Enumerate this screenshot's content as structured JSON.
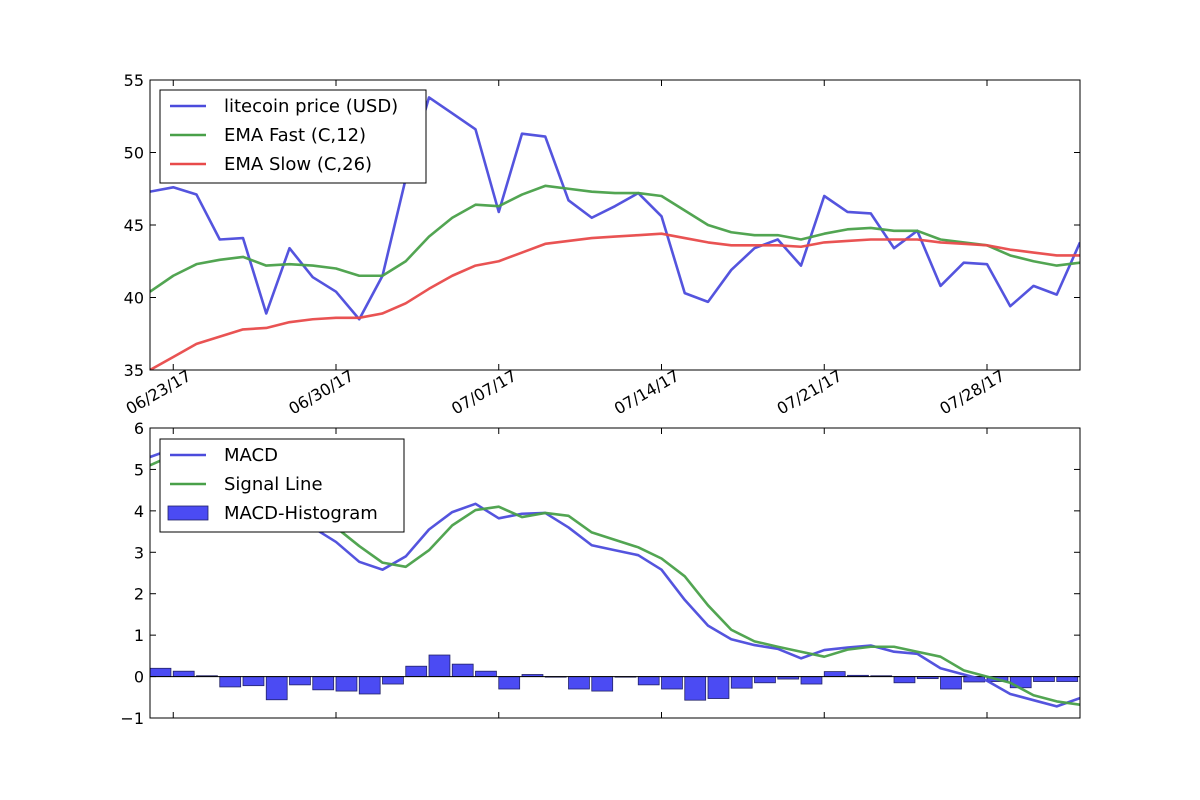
{
  "chart_data": [
    {
      "type": "line",
      "dates": [
        "2017-06-22",
        "2017-06-23",
        "2017-06-24",
        "2017-06-25",
        "2017-06-26",
        "2017-06-27",
        "2017-06-28",
        "2017-06-29",
        "2017-06-30",
        "2017-07-01",
        "2017-07-02",
        "2017-07-03",
        "2017-07-04",
        "2017-07-05",
        "2017-07-06",
        "2017-07-07",
        "2017-07-08",
        "2017-07-09",
        "2017-07-10",
        "2017-07-11",
        "2017-07-12",
        "2017-07-13",
        "2017-07-14",
        "2017-07-15",
        "2017-07-16",
        "2017-07-17",
        "2017-07-18",
        "2017-07-19",
        "2017-07-20",
        "2017-07-21",
        "2017-07-22",
        "2017-07-23",
        "2017-07-24",
        "2017-07-25",
        "2017-07-26",
        "2017-07-27",
        "2017-07-28",
        "2017-07-29",
        "2017-07-30",
        "2017-07-31",
        "2017-08-01"
      ],
      "series": [
        {
          "name": "litecoin price (USD)",
          "color": "#4b4bdc",
          "values": [
            47.3,
            47.6,
            47.1,
            44.0,
            44.1,
            38.9,
            43.4,
            41.4,
            40.4,
            38.5,
            41.5,
            48.2,
            53.8,
            52.7,
            51.6,
            45.9,
            51.3,
            51.1,
            46.7,
            45.5,
            46.3,
            47.2,
            45.6,
            40.3,
            39.7,
            41.9,
            43.4,
            44.0,
            42.2,
            47.0,
            45.9,
            45.8,
            43.4,
            44.6,
            40.8,
            42.4,
            42.3,
            39.4,
            40.8,
            40.2,
            43.8
          ]
        },
        {
          "name": "EMA Fast (C,12)",
          "color": "#49a049",
          "values": [
            40.4,
            41.5,
            42.3,
            42.6,
            42.8,
            42.2,
            42.3,
            42.2,
            42.0,
            41.5,
            41.5,
            42.5,
            44.2,
            45.5,
            46.4,
            46.3,
            47.1,
            47.7,
            47.5,
            47.3,
            47.2,
            47.2,
            47.0,
            46.0,
            45.0,
            44.5,
            44.3,
            44.3,
            44.0,
            44.4,
            44.7,
            44.8,
            44.6,
            44.6,
            44.0,
            43.8,
            43.6,
            42.9,
            42.5,
            42.2,
            42.4
          ]
        },
        {
          "name": "EMA Slow (C,26)",
          "color": "#e84a4a",
          "values": [
            35.0,
            35.9,
            36.8,
            37.3,
            37.8,
            37.9,
            38.3,
            38.5,
            38.6,
            38.6,
            38.9,
            39.6,
            40.6,
            41.5,
            42.2,
            42.5,
            43.1,
            43.7,
            43.9,
            44.1,
            44.2,
            44.3,
            44.4,
            44.1,
            43.8,
            43.6,
            43.6,
            43.6,
            43.5,
            43.8,
            43.9,
            44.0,
            44.0,
            44.0,
            43.8,
            43.7,
            43.6,
            43.3,
            43.1,
            42.9,
            42.9
          ]
        }
      ],
      "xticks": [
        {
          "date": "2017-06-23",
          "label": "06/23/17"
        },
        {
          "date": "2017-06-30",
          "label": "06/30/17"
        },
        {
          "date": "2017-07-07",
          "label": "07/07/17"
        },
        {
          "date": "2017-07-14",
          "label": "07/14/17"
        },
        {
          "date": "2017-07-21",
          "label": "07/21/17"
        },
        {
          "date": "2017-07-28",
          "label": "07/28/17"
        }
      ],
      "xlim": [
        "2017-06-22",
        "2017-08-01"
      ],
      "yticks": [
        35,
        40,
        45,
        50,
        55
      ],
      "ylim": [
        35,
        55
      ],
      "grid": false,
      "legend": "top-left",
      "legend_entries": [
        "litecoin price (USD)",
        "EMA Fast (C,12)",
        "EMA Slow (C,26)"
      ]
    },
    {
      "type": "line",
      "dates": [
        "2017-06-22",
        "2017-06-23",
        "2017-06-24",
        "2017-06-25",
        "2017-06-26",
        "2017-06-27",
        "2017-06-28",
        "2017-06-29",
        "2017-06-30",
        "2017-07-01",
        "2017-07-02",
        "2017-07-03",
        "2017-07-04",
        "2017-07-05",
        "2017-07-06",
        "2017-07-07",
        "2017-07-08",
        "2017-07-09",
        "2017-07-10",
        "2017-07-11",
        "2017-07-12",
        "2017-07-13",
        "2017-07-14",
        "2017-07-15",
        "2017-07-16",
        "2017-07-17",
        "2017-07-18",
        "2017-07-19",
        "2017-07-20",
        "2017-07-21",
        "2017-07-22",
        "2017-07-23",
        "2017-07-24",
        "2017-07-25",
        "2017-07-26",
        "2017-07-27",
        "2017-07-28",
        "2017-07-29",
        "2017-07-30",
        "2017-07-31",
        "2017-08-01"
      ],
      "series": [
        {
          "name": "MACD",
          "color": "#4b4bdc",
          "kind": "line",
          "values": [
            5.3,
            5.5,
            5.3,
            5.0,
            4.6,
            4.1,
            3.9,
            3.6,
            3.25,
            2.77,
            2.58,
            2.9,
            3.55,
            3.97,
            4.17,
            3.82,
            3.93,
            3.95,
            3.6,
            3.17,
            3.05,
            2.93,
            2.58,
            1.85,
            1.23,
            0.9,
            0.76,
            0.67,
            0.44,
            0.64,
            0.7,
            0.75,
            0.6,
            0.55,
            0.2,
            0.05,
            -0.1,
            -0.42,
            -0.57,
            -0.72,
            -0.52
          ]
        },
        {
          "name": "Signal Line",
          "color": "#49a049",
          "kind": "line",
          "values": [
            5.1,
            5.35,
            5.3,
            5.2,
            4.85,
            4.65,
            4.1,
            3.95,
            3.6,
            3.15,
            2.75,
            2.65,
            3.05,
            3.65,
            4.02,
            4.1,
            3.85,
            3.95,
            3.88,
            3.48,
            3.3,
            3.12,
            2.85,
            2.42,
            1.72,
            1.13,
            0.85,
            0.72,
            0.6,
            0.48,
            0.65,
            0.72,
            0.72,
            0.6,
            0.48,
            0.15,
            0.0,
            -0.15,
            -0.45,
            -0.6,
            -0.68
          ]
        },
        {
          "name": "MACD-Histogram",
          "color": "#4b4bf3",
          "kind": "bar",
          "values": [
            0.2,
            0.13,
            0.02,
            -0.25,
            -0.22,
            -0.56,
            -0.2,
            -0.32,
            -0.35,
            -0.42,
            -0.18,
            0.25,
            0.52,
            0.3,
            0.13,
            -0.3,
            0.05,
            0.0,
            -0.3,
            -0.35,
            0.0,
            -0.2,
            -0.3,
            -0.57,
            -0.53,
            -0.28,
            -0.15,
            -0.06,
            -0.18,
            0.12,
            0.03,
            0.02,
            -0.15,
            -0.05,
            -0.3,
            -0.13,
            -0.12,
            -0.27,
            -0.12,
            -0.12,
            0.1
          ]
        }
      ],
      "yticks": [
        -1,
        0,
        1,
        2,
        3,
        4,
        5,
        6
      ],
      "ytick_labels": [
        "−1",
        "0",
        "1",
        "2",
        "3",
        "4",
        "5",
        "6"
      ],
      "ylim": [
        -1,
        6
      ],
      "grid": false,
      "legend": "top-left",
      "legend_entries": [
        "MACD",
        "Signal Line",
        "MACD-Histogram"
      ]
    }
  ]
}
